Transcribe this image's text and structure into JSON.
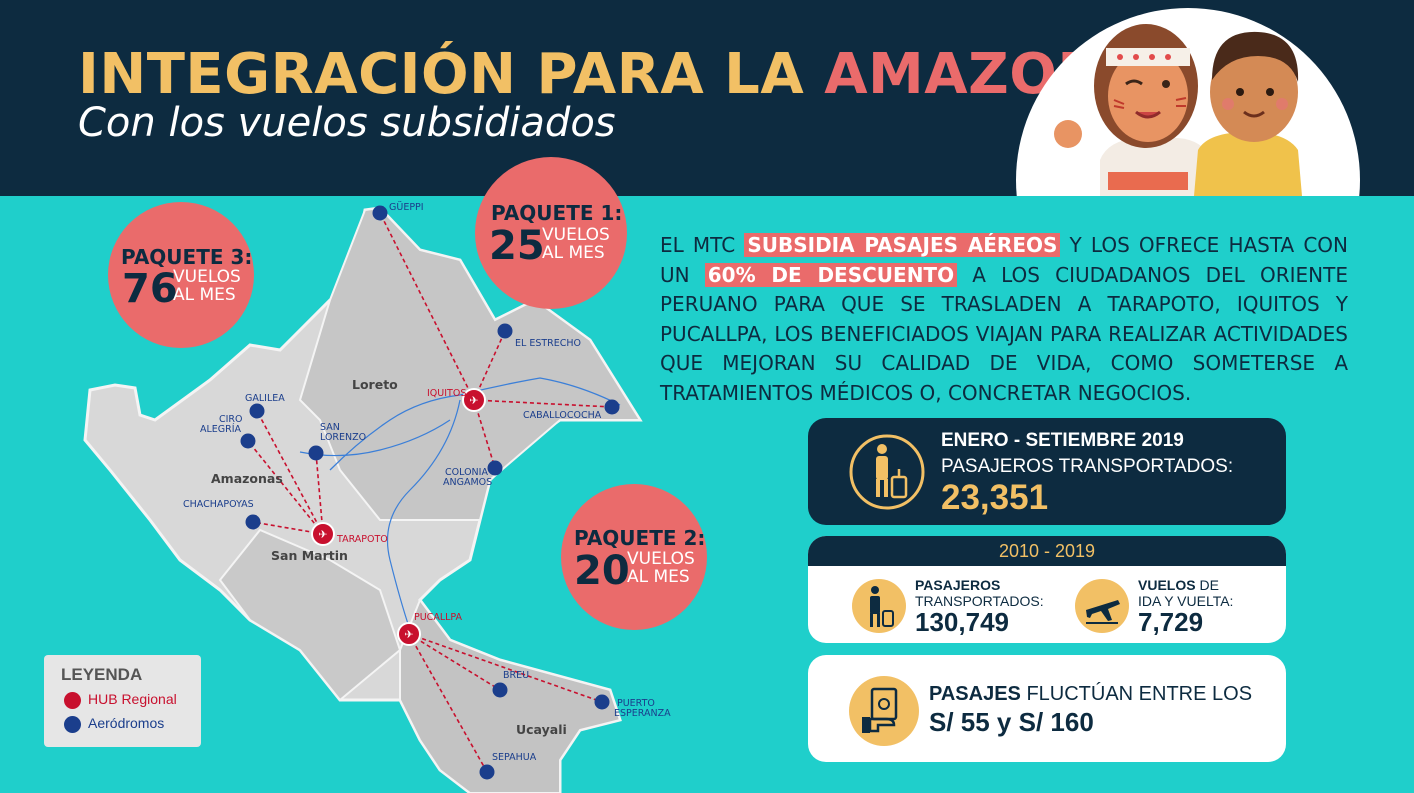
{
  "header": {
    "title_part1": "INTEGRACIÓN PARA LA",
    "title_part2": "AMAZONÍA",
    "subtitle": "Con los vuelos subsidiados"
  },
  "packages": [
    {
      "label": "PAQUETE 1:",
      "number": "25",
      "unit_line1": "VUELOS",
      "unit_line2": "AL MES"
    },
    {
      "label": "PAQUETE 2:",
      "number": "20",
      "unit_line1": "VUELOS",
      "unit_line2": "AL MES"
    },
    {
      "label": "PAQUETE 3:",
      "number": "76",
      "unit_line1": "VUELOS",
      "unit_line2": "AL MES"
    }
  ],
  "intro": {
    "part1": "EL MTC ",
    "highlight1": "SUBSIDIA PASAJES AÉREOS",
    "part2": " Y LOS OFRECE HASTA CON UN ",
    "highlight2": "60% DE DESCUENTO",
    "part3": " A LOS CIUDADANOS DEL ORIENTE PERUANO PARA QUE SE TRASLADEN A TARAPOTO, IQUITOS Y PUCALLPA, LOS BENEFICIADOS VIAJAN PARA REALIZAR ACTIVIDADES QUE MEJORAN SU CALIDAD DE VIDA, COMO SOMETERSE A TRATAMIENTOS MÉDICOS O, CONCRETAR NEGOCIOS."
  },
  "stats_2019": {
    "period": "ENERO - SETIEMBRE 2019",
    "label": "PASAJEROS TRANSPORTADOS:",
    "value": "23,351"
  },
  "stats_total": {
    "period": "2010 - 2019",
    "passengers_label_bold": "PASAJEROS",
    "passengers_label_rest": "TRANSPORTADOS:",
    "passengers_value": "130,749",
    "flights_label_bold": "VUELOS",
    "flights_label_rest1": "DE",
    "flights_label_rest2": "IDA Y VUELTA:",
    "flights_value": "7,729"
  },
  "fares": {
    "label_bold": "PASAJES",
    "label_rest": "FLUCTÚAN ENTRE LOS",
    "range": "S/ 55 y S/ 160"
  },
  "legend": {
    "title": "LEYENDA",
    "hub": "HUB Regional",
    "aerodrome": "Aeródromos"
  },
  "map": {
    "regions": [
      "Loreto",
      "Amazonas",
      "San Martin",
      "Ucayali"
    ],
    "hubs": [
      "IQUITOS",
      "TARAPOTO",
      "PUCALLPA"
    ],
    "aerodromes": [
      "GÜEPPI",
      "EL ESTRECHO",
      "CABALLOCOCHA",
      "COLONIA",
      "ANGAMOS",
      "GALILEA",
      "CIRO",
      "ALEGRÍA",
      "SAN",
      "LORENZO",
      "CHACHAPOYAS",
      "BREU",
      "PUERTO",
      "ESPERANZA",
      "SEPAHUA"
    ]
  },
  "colors": {
    "navy": "#0d2b40",
    "turquoise": "#1fcfcb",
    "coral": "#ea6b6b",
    "gold": "#f2c065",
    "route": "#c8102e",
    "aerodrome_blue": "#1b3e8c"
  }
}
